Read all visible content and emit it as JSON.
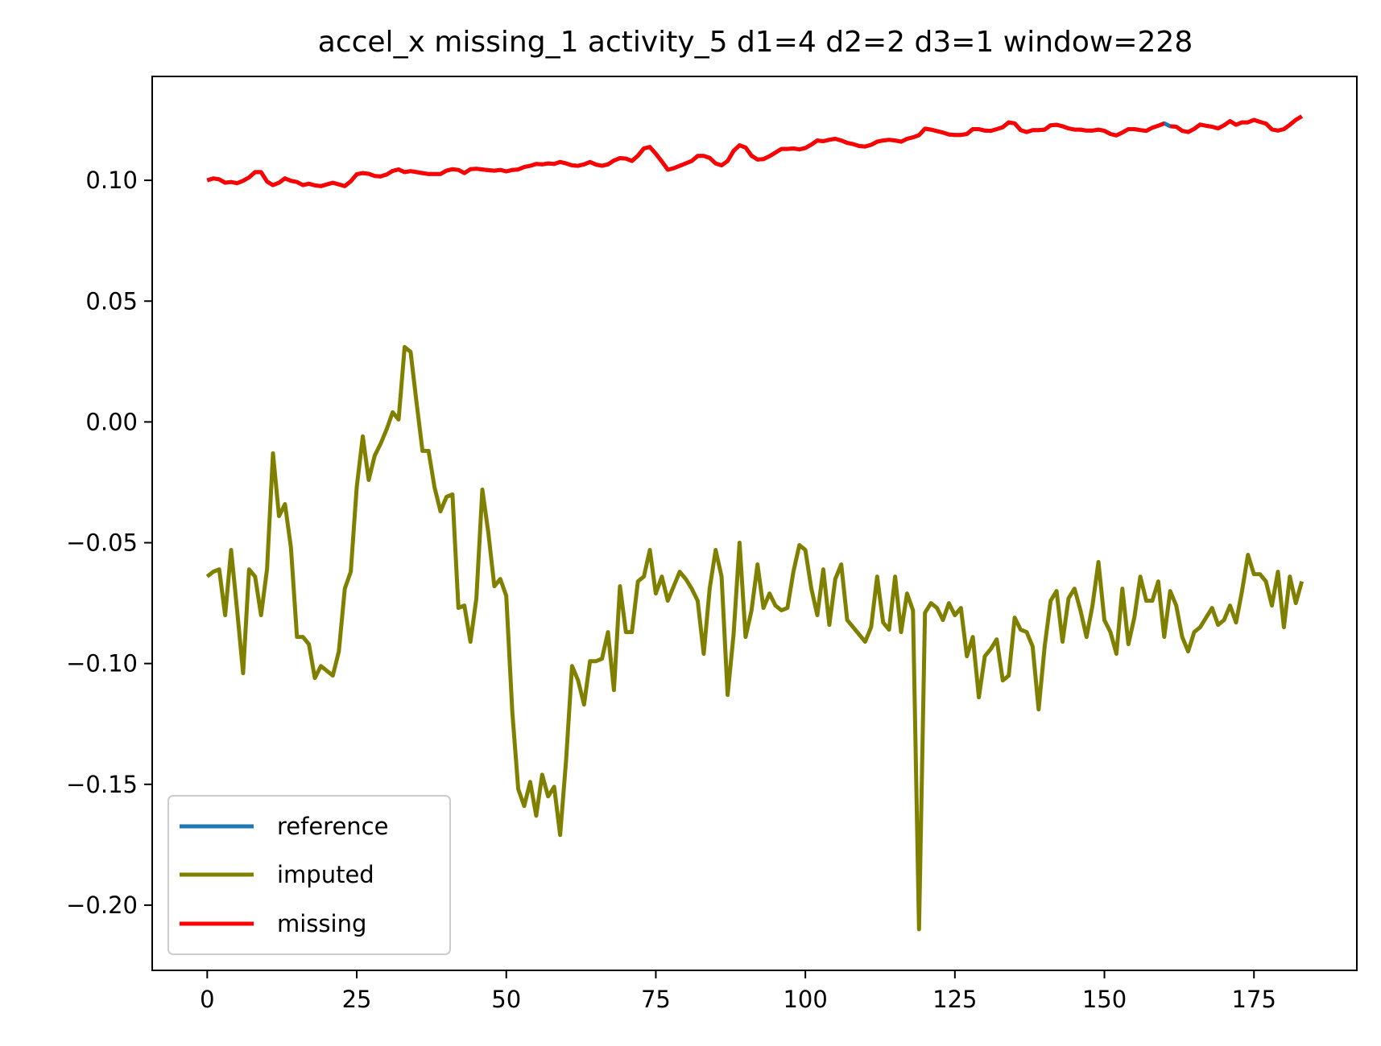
{
  "chart_data": {
    "type": "line",
    "title": "accel_x missing_1 activity_5 d1=4 d2=2 d3=1 window=228",
    "xlabel": "",
    "ylabel": "",
    "xlim": [
      -9.2,
      192.2
    ],
    "ylim": [
      -0.227,
      0.143
    ],
    "x_ticks": [
      0,
      25,
      50,
      75,
      100,
      125,
      150,
      175
    ],
    "y_ticks": [
      0.1,
      0.05,
      0.0,
      -0.05,
      -0.1,
      -0.15,
      -0.2
    ],
    "y_tick_labels": [
      "0.10",
      "0.05",
      "0.00",
      "−0.05",
      "−0.10",
      "−0.15",
      "−0.20"
    ],
    "x_tick_labels": [
      "0",
      "25",
      "50",
      "75",
      "100",
      "125",
      "150",
      "175"
    ],
    "grid": false,
    "legend_position": "lower-left",
    "series": [
      {
        "name": "reference",
        "color": "#1f77b4",
        "x_start": 0,
        "values": [
          0.1,
          0.1008,
          0.1004,
          0.099,
          0.0993,
          0.0988,
          0.0998,
          0.1012,
          0.1034,
          0.1034,
          0.0995,
          0.098,
          0.099,
          0.1008,
          0.0998,
          0.0993,
          0.098,
          0.0986,
          0.0979,
          0.0976,
          0.0983,
          0.099,
          0.0983,
          0.0976,
          0.0996,
          0.1025,
          0.103,
          0.1027,
          0.1018,
          0.1016,
          0.1024,
          0.1039,
          0.1045,
          0.1034,
          0.1038,
          0.1034,
          0.103,
          0.1026,
          0.1026,
          0.1026,
          0.104,
          0.1046,
          0.1043,
          0.103,
          0.1046,
          0.1048,
          0.1045,
          0.1042,
          0.104,
          0.1043,
          0.1037,
          0.1043,
          0.1045,
          0.1055,
          0.106,
          0.1068,
          0.1066,
          0.107,
          0.1068,
          0.1076,
          0.107,
          0.1062,
          0.106,
          0.1066,
          0.1076,
          0.1065,
          0.106,
          0.1066,
          0.1082,
          0.1092,
          0.109,
          0.108,
          0.1102,
          0.1132,
          0.1138,
          0.111,
          0.1078,
          0.1044,
          0.105,
          0.106,
          0.107,
          0.108,
          0.1101,
          0.1101,
          0.1093,
          0.107,
          0.1062,
          0.108,
          0.1122,
          0.1145,
          0.1136,
          0.1102,
          0.1086,
          0.1088,
          0.11,
          0.1115,
          0.113,
          0.113,
          0.1132,
          0.1128,
          0.1134,
          0.1148,
          0.1165,
          0.1162,
          0.1168,
          0.1172,
          0.1165,
          0.1155,
          0.115,
          0.1142,
          0.114,
          0.1147,
          0.116,
          0.1165,
          0.1168,
          0.1165,
          0.116,
          0.1172,
          0.1178,
          0.1187,
          0.1214,
          0.121,
          0.1204,
          0.1198,
          0.119,
          0.1188,
          0.1188,
          0.1192,
          0.1212,
          0.1212,
          0.1206,
          0.1205,
          0.1212,
          0.122,
          0.124,
          0.1236,
          0.1208,
          0.12,
          0.1208,
          0.1208,
          0.121,
          0.1228,
          0.123,
          0.1224,
          0.1215,
          0.121,
          0.121,
          0.1206,
          0.1206,
          0.121,
          0.1205,
          0.1192,
          0.1186,
          0.1198,
          0.1212,
          0.1212,
          0.1208,
          0.1205,
          0.1218,
          0.1226,
          0.1236,
          0.1224,
          0.1222,
          0.1205,
          0.12,
          0.1213,
          0.1231,
          0.1226,
          0.1222,
          0.1215,
          0.1228,
          0.1245,
          0.123,
          0.124,
          0.124,
          0.125,
          0.1242,
          0.1235,
          0.1211,
          0.1206,
          0.1212,
          0.123,
          0.125,
          0.1265
        ]
      },
      {
        "name": "imputed",
        "color": "#808000",
        "x_start": 0,
        "values": [
          -0.064,
          -0.062,
          -0.061,
          -0.08,
          -0.053,
          -0.078,
          -0.104,
          -0.061,
          -0.064,
          -0.08,
          -0.061,
          -0.013,
          -0.039,
          -0.034,
          -0.052,
          -0.089,
          -0.089,
          -0.092,
          -0.106,
          -0.101,
          -0.103,
          -0.105,
          -0.095,
          -0.069,
          -0.062,
          -0.027,
          -0.006,
          -0.024,
          -0.014,
          -0.009,
          -0.003,
          0.004,
          0.001,
          0.031,
          0.029,
          0.008,
          -0.012,
          -0.012,
          -0.027,
          -0.037,
          -0.031,
          -0.03,
          -0.077,
          -0.076,
          -0.091,
          -0.073,
          -0.028,
          -0.046,
          -0.068,
          -0.065,
          -0.072,
          -0.12,
          -0.152,
          -0.159,
          -0.149,
          -0.163,
          -0.146,
          -0.155,
          -0.151,
          -0.171,
          -0.14,
          -0.101,
          -0.107,
          -0.117,
          -0.099,
          -0.099,
          -0.098,
          -0.087,
          -0.111,
          -0.068,
          -0.087,
          -0.087,
          -0.066,
          -0.064,
          -0.053,
          -0.071,
          -0.064,
          -0.074,
          -0.068,
          -0.062,
          -0.065,
          -0.069,
          -0.074,
          -0.096,
          -0.069,
          -0.053,
          -0.064,
          -0.113,
          -0.088,
          -0.05,
          -0.089,
          -0.078,
          -0.059,
          -0.077,
          -0.071,
          -0.076,
          -0.078,
          -0.077,
          -0.062,
          -0.051,
          -0.053,
          -0.069,
          -0.08,
          -0.061,
          -0.084,
          -0.065,
          -0.059,
          -0.082,
          -0.085,
          -0.088,
          -0.091,
          -0.085,
          -0.064,
          -0.083,
          -0.086,
          -0.064,
          -0.087,
          -0.071,
          -0.078,
          -0.21,
          -0.079,
          -0.075,
          -0.077,
          -0.082,
          -0.075,
          -0.08,
          -0.077,
          -0.097,
          -0.089,
          -0.114,
          -0.097,
          -0.094,
          -0.09,
          -0.107,
          -0.105,
          -0.081,
          -0.086,
          -0.087,
          -0.093,
          -0.119,
          -0.093,
          -0.074,
          -0.07,
          -0.091,
          -0.073,
          -0.069,
          -0.078,
          -0.089,
          -0.076,
          -0.058,
          -0.082,
          -0.087,
          -0.096,
          -0.069,
          -0.092,
          -0.081,
          -0.064,
          -0.074,
          -0.074,
          -0.066,
          -0.089,
          -0.07,
          -0.076,
          -0.089,
          -0.095,
          -0.087,
          -0.085,
          -0.081,
          -0.077,
          -0.084,
          -0.082,
          -0.076,
          -0.083,
          -0.07,
          -0.055,
          -0.063,
          -0.063,
          -0.066,
          -0.076,
          -0.062,
          -0.085,
          -0.064,
          -0.075,
          -0.066
        ]
      },
      {
        "name": "missing",
        "color": "#ff0000",
        "x_start": 0,
        "gaps": [
          [
            160,
            161
          ]
        ],
        "values_ref": "reference"
      }
    ]
  }
}
